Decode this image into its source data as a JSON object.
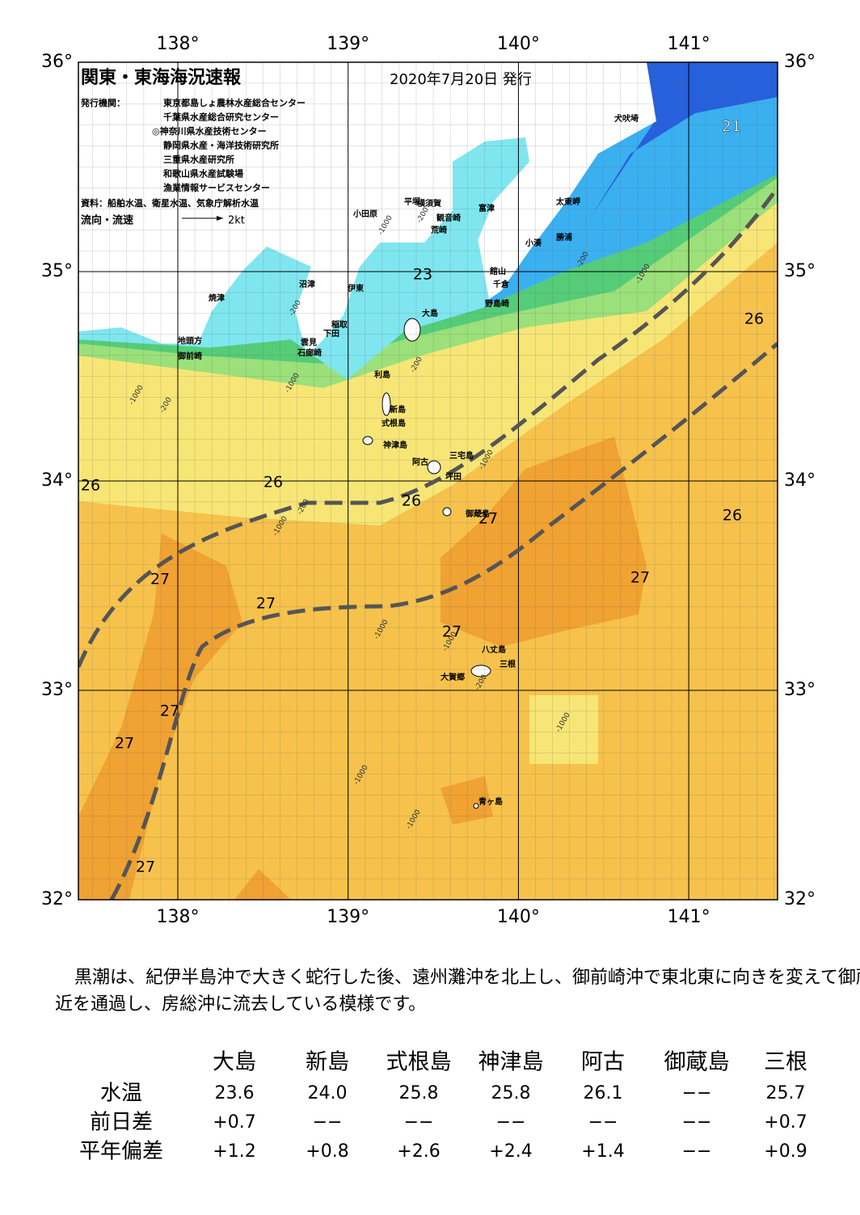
{
  "map": {
    "title": "関東・東海海況速報",
    "date": "2020年7月20日 発行",
    "issuers_label": "発行機関：",
    "issuers": [
      "東京都島しょ農林水産総合センター",
      "千葉県水産総合研究センター",
      "◎神奈川県水産技術センター",
      "静岡県水産・海洋技術研究所",
      "三重県水産研究所",
      "和歌山県水産試験場",
      "漁業情報サービスセンター"
    ],
    "source": "資料：船舶水温、衛星水温、気象庁解析水温",
    "legend_label": "流向・流速",
    "legend_scale": "2kt",
    "lon_labels": [
      "138°",
      "139°",
      "140°",
      "141°"
    ],
    "lat_labels": [
      "36°",
      "35°",
      "34°",
      "33°",
      "32°"
    ],
    "places": [
      "犬吠埼",
      "太東岬",
      "勝浦",
      "小湊",
      "富津",
      "横須賀",
      "平塚",
      "観音崎",
      "荒崎",
      "小田原",
      "館山",
      "千倉",
      "野島崎",
      "沼津",
      "伊東",
      "焼津",
      "稲取",
      "下田",
      "雲見",
      "石廊崎",
      "地頭方",
      "御前崎",
      "大島",
      "利島",
      "新島",
      "式根島",
      "神津島",
      "三宅島",
      "阿古",
      "坪田",
      "御蔵島",
      "八丈島",
      "三根",
      "大賀郷",
      "青ヶ島"
    ],
    "temperatures": [
      "21",
      "23",
      "26",
      "26",
      "26",
      "26",
      "27",
      "26",
      "27",
      "27",
      "27",
      "27",
      "27",
      "27",
      "27"
    ],
    "contours": [
      "-200",
      "-1000",
      "-200",
      "-1000",
      "-200",
      "-1000",
      "-200",
      "-1000",
      "-200",
      "-200",
      "-1000",
      "-1000",
      "-1000",
      "-1000",
      "-200",
      "-1000",
      "-1000",
      "-1000"
    ]
  },
  "summary": "黒潮は、紀伊半島沖で大きく蛇行した後、遠州灘沖を北上し、御前崎沖で東北東に向きを変えて御蔵島付近を通過し、房総沖に流去している模様です。",
  "table": {
    "header": [
      "大島",
      "新島",
      "式根島",
      "神津島",
      "阿古",
      "御蔵島",
      "三根"
    ],
    "rows": [
      [
        "水温",
        "23.6",
        "24.0",
        "25.8",
        "25.8",
        "26.1",
        "−−",
        "25.7"
      ],
      [
        "前日差",
        "+0.7",
        "−−",
        "−−",
        "−−",
        "−−",
        "−−",
        "+0.7"
      ],
      [
        "平年偏差",
        "+1.2",
        "+0.8",
        "+2.6",
        "+2.4",
        "+1.4",
        "−−",
        "+0.9"
      ]
    ]
  }
}
